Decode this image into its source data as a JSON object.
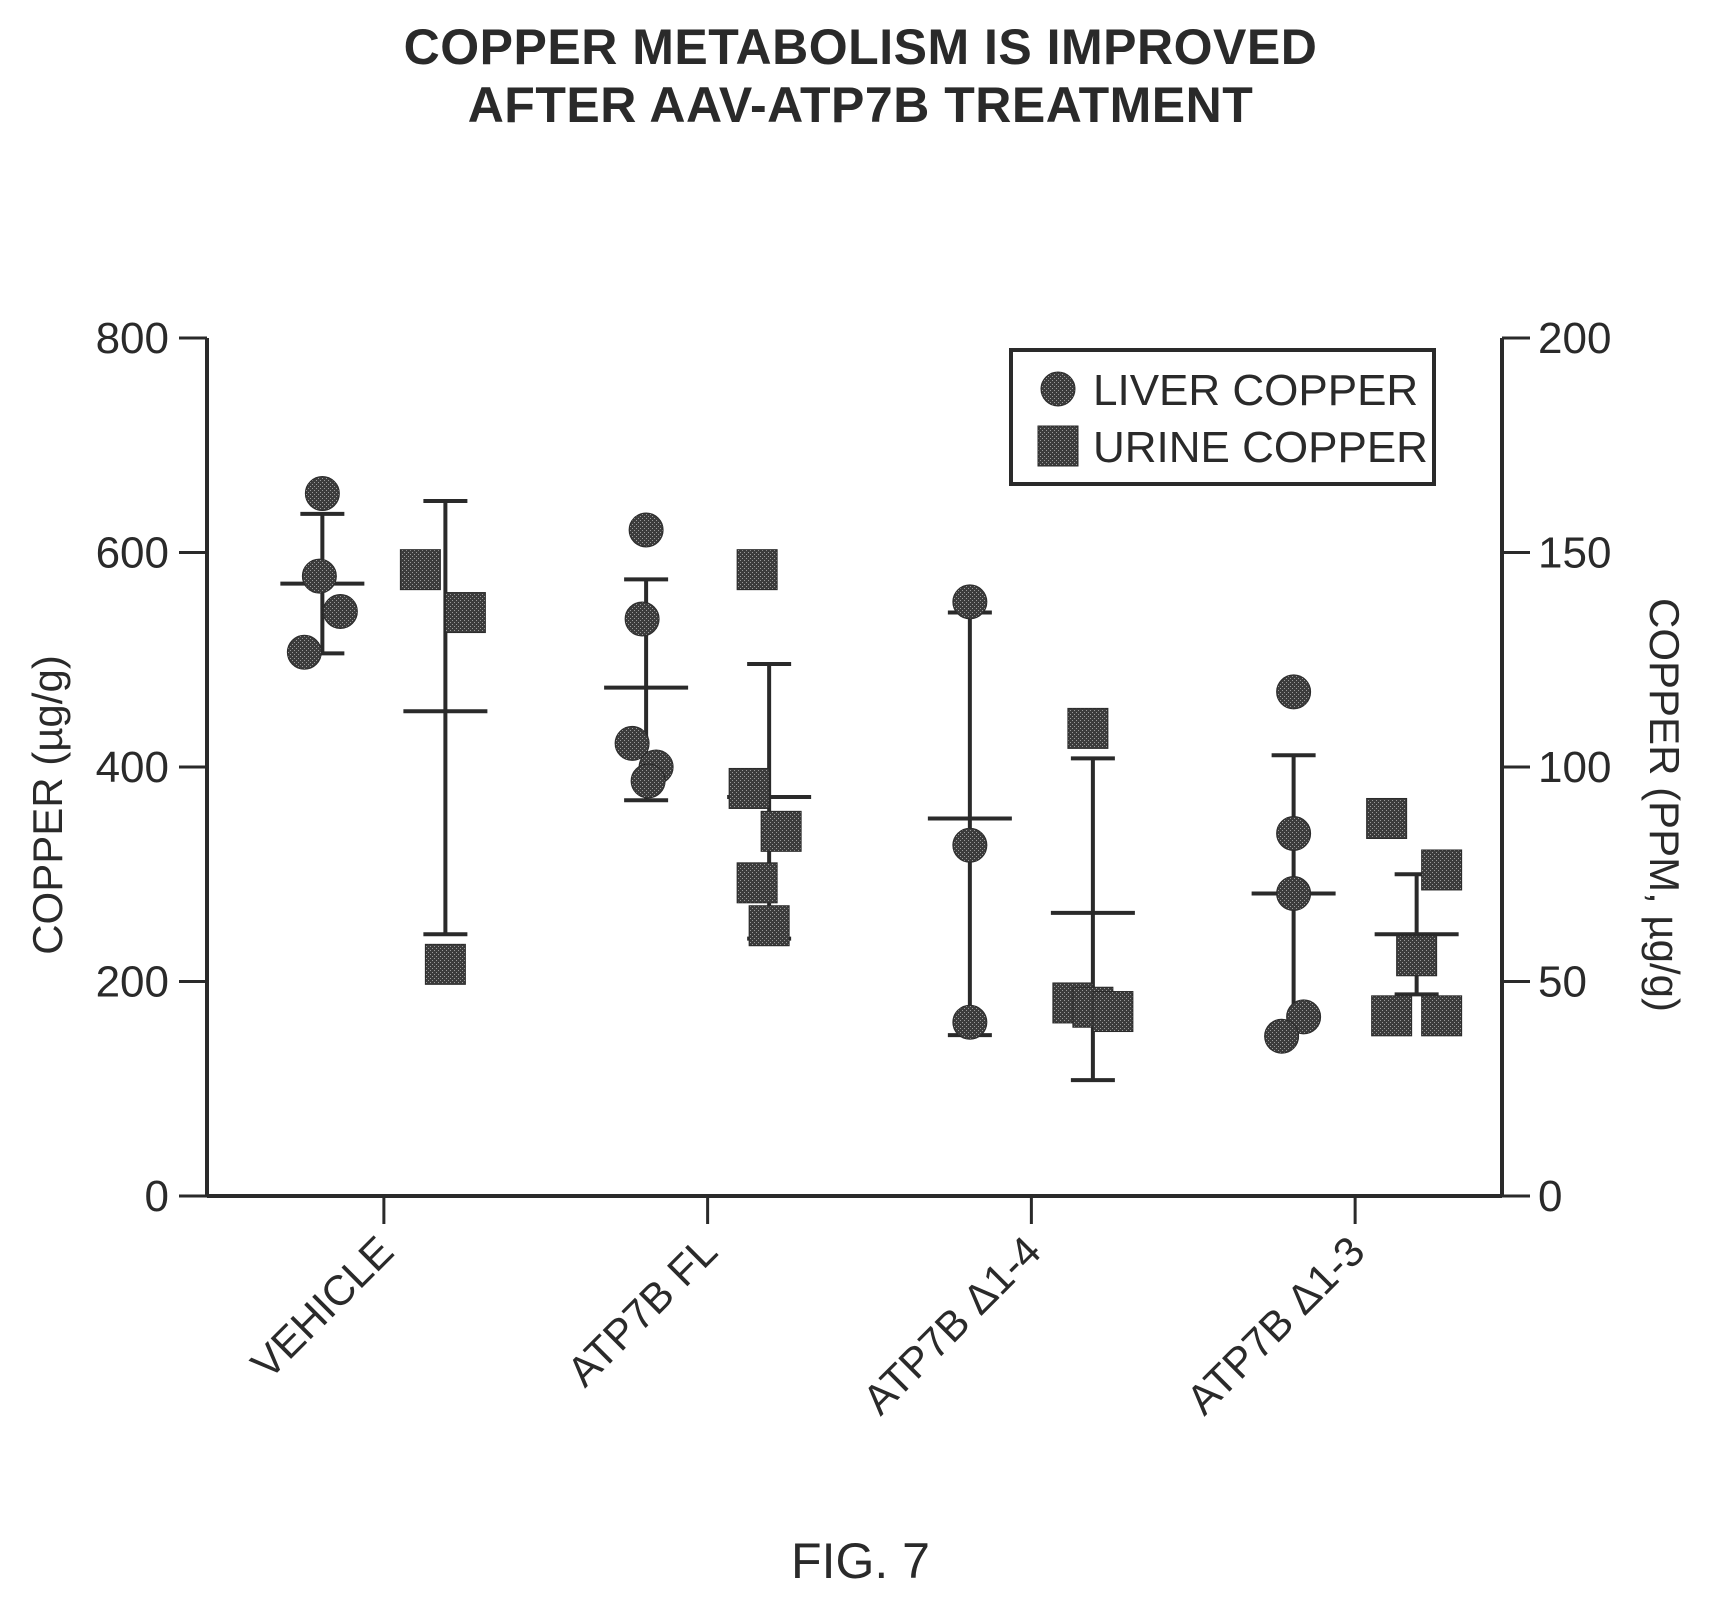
{
  "chart_data": {
    "type": "scatter",
    "title_lines": [
      "COPPER METABOLISM IS IMPROVED",
      "AFTER AAV-ATP7B TREATMENT"
    ],
    "ylabel": "COPPER (µg/g)",
    "y2label": "COPPER (PPM, µg/g)",
    "ylim": [
      0,
      800
    ],
    "y2lim": [
      0,
      200
    ],
    "yticks": [
      "0",
      "200",
      "400",
      "600",
      "800"
    ],
    "y2ticks": [
      "0",
      "50",
      "100",
      "150",
      "200"
    ],
    "categories": [
      "VEHICLE",
      "ATP7B FL",
      "ATP7B Δ1-4",
      "ATP7B Δ1-3"
    ],
    "legend_position": "top-right",
    "grid": false,
    "series": [
      {
        "name": "LIVER COPPER",
        "marker": "circle",
        "axis": "left",
        "groups": [
          {
            "points": [
              655,
              578,
              545,
              507
            ],
            "mean": 571,
            "err_low": 506,
            "err_high": 636
          },
          {
            "points": [
              621,
              538,
              422,
              400,
              387
            ],
            "mean": 474,
            "err_low": 369,
            "err_high": 575
          },
          {
            "points": [
              554,
              327,
              162
            ],
            "mean": 352,
            "err_low": 150,
            "err_high": 544
          },
          {
            "points": [
              470,
              338,
              282,
              167,
              149
            ],
            "mean": 282,
            "err_low": 157,
            "err_high": 411
          }
        ]
      },
      {
        "name": "URINE COPPER",
        "marker": "square",
        "axis": "right",
        "groups": [
          {
            "points": [
              146,
              136,
              54
            ],
            "mean": 113,
            "err_low": 61,
            "err_high": 162
          },
          {
            "points": [
              146,
              95,
              85,
              73,
              63
            ],
            "mean": 93,
            "err_low": 60,
            "err_high": 124
          },
          {
            "points": [
              109,
              45,
              44,
              43
            ],
            "mean": 66,
            "err_low": 27,
            "err_high": 102
          },
          {
            "points": [
              88,
              76,
              56,
              42,
              42
            ],
            "mean": 61,
            "err_low": 47,
            "err_high": 75
          }
        ]
      }
    ]
  },
  "figure_label": "FIG. 7"
}
